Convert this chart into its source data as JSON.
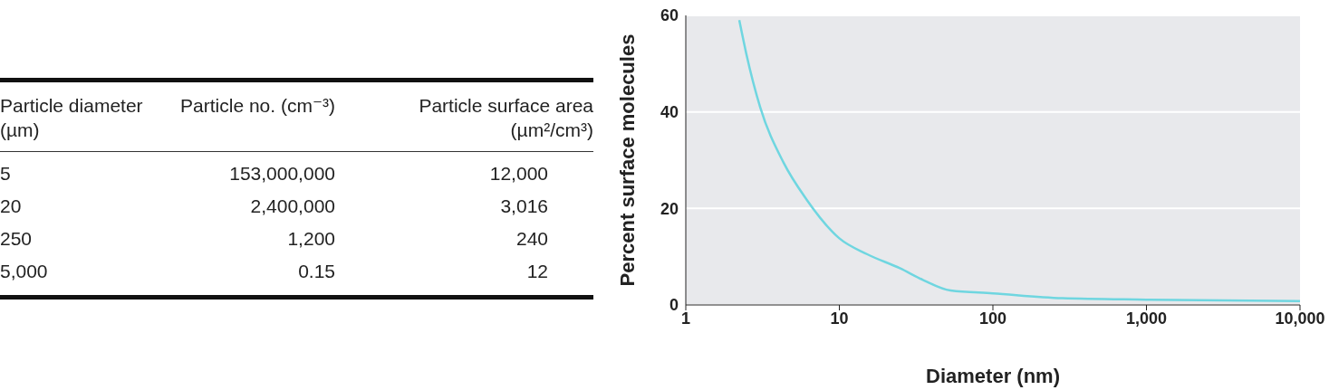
{
  "chart_data": [
    {
      "type": "other",
      "categories": [
        "Particle diameter (µm)",
        "Particle no. (cm⁻³)",
        "Particle surface area (µm²/cm³)"
      ],
      "annotations": [
        "5",
        "153,000,000",
        "12,000",
        "20",
        "2,400,000",
        "3,016",
        "250",
        "1,200",
        "240",
        "5,000",
        "0.15",
        "12"
      ]
    },
    {
      "type": "line",
      "xlabel": "Diameter (nm)",
      "ylabel": "Percent surface molecules",
      "log": "x",
      "grid": "y",
      "x": [
        2.23,
        2.48,
        3.05,
        4.33,
        6.1,
        10,
        15.2,
        24.8,
        35,
        53,
        100,
        283,
        1000,
        10000
      ],
      "series": [
        {
          "color": "#6fd6e0",
          "values": [
            59,
            52,
            41,
            29.5,
            21.9,
            13.8,
            10.5,
            7.6,
            5.2,
            3,
            2.4,
            1.4,
            1.1,
            0.8
          ]
        }
      ],
      "xlim": [
        1,
        10000
      ],
      "xticks": [
        1,
        10,
        100,
        {
          "value": 1000,
          "label": "1,000"
        },
        {
          "value": 10000,
          "label": "10,000"
        }
      ],
      "ylim": [
        0,
        60
      ],
      "yticks": [
        0,
        20,
        40,
        60
      ]
    }
  ]
}
